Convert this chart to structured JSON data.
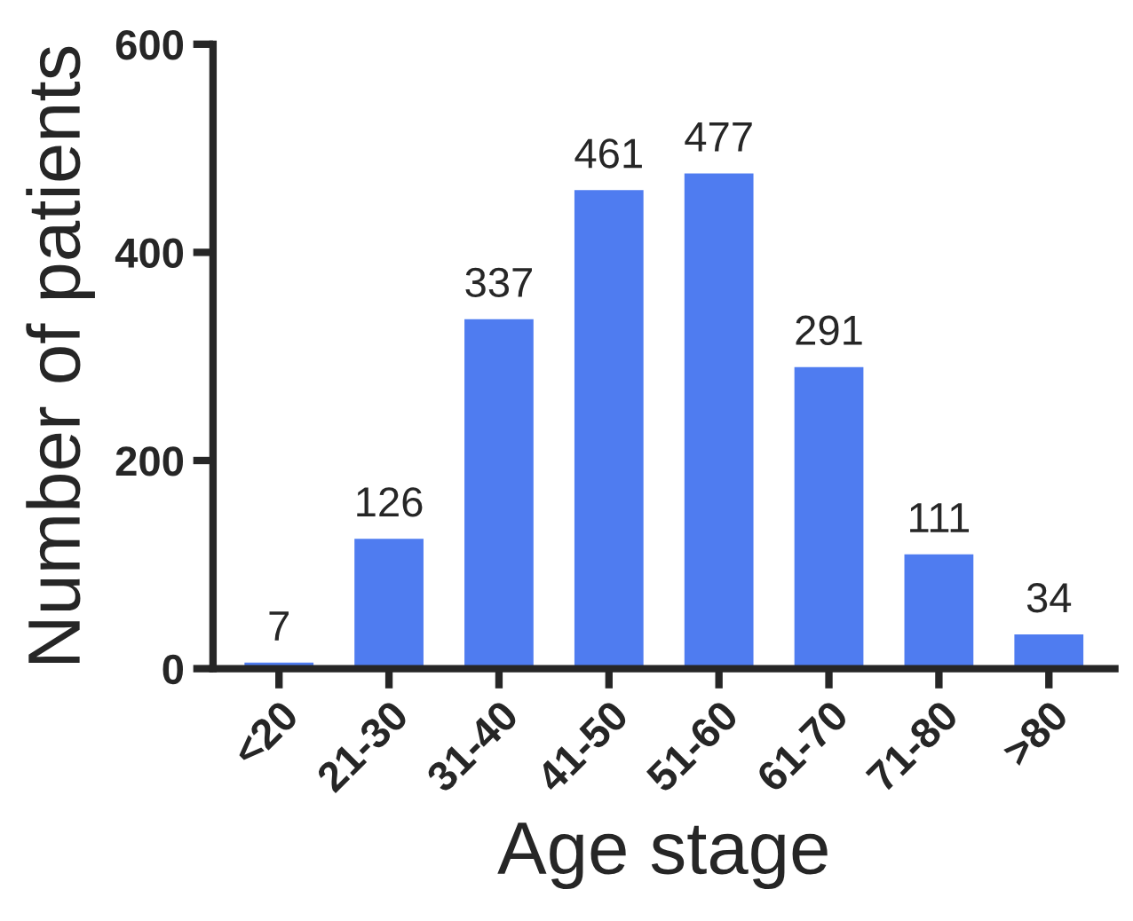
{
  "chart_data": {
    "type": "bar",
    "xlabel": "Age stage",
    "ylabel": "Number of patients",
    "categories": [
      "<20",
      "21-30",
      "31-40",
      "41-50",
      "51-60",
      "61-70",
      "71-80",
      ">80"
    ],
    "values": [
      7,
      126,
      337,
      461,
      477,
      291,
      111,
      34
    ],
    "color": "#4f7cf0",
    "ylim": [
      0,
      600
    ],
    "yticks": [
      0,
      200,
      400,
      600
    ],
    "grid": false,
    "data_labels": true
  }
}
